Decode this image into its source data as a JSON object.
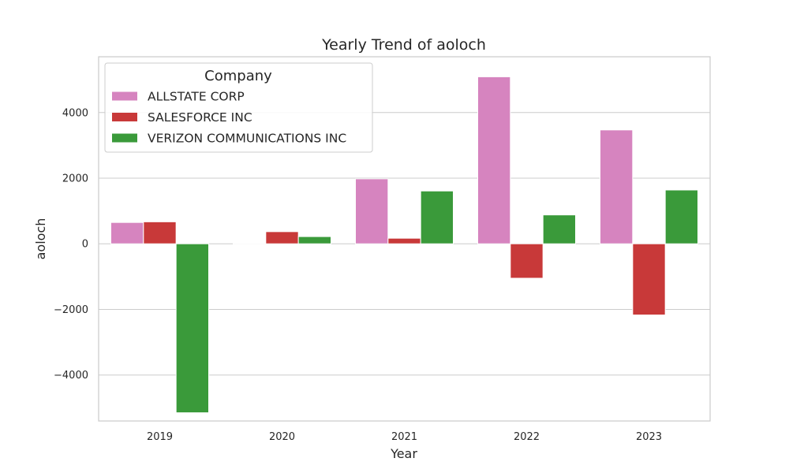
{
  "chart_data": {
    "type": "bar",
    "title": "Yearly Trend of aoloch",
    "xlabel": "Year",
    "ylabel": "aoloch",
    "categories": [
      "2019",
      "2020",
      "2021",
      "2022",
      "2023"
    ],
    "ylim": [
      -5400,
      5700
    ],
    "yticks": [
      -4000,
      -2000,
      0,
      2000,
      4000
    ],
    "ytick_labels": [
      "−4000",
      "−2000",
      "0",
      "2000",
      "4000"
    ],
    "grid": true,
    "legend": {
      "title": "Company",
      "placement": "top-left"
    },
    "series": [
      {
        "name": "ALLSTATE CORP",
        "color": "#d684bf",
        "values": [
          650,
          10,
          1980,
          5090,
          3470
        ]
      },
      {
        "name": "SALESFORCE INC",
        "color": "#c83939",
        "values": [
          670,
          370,
          170,
          -1050,
          -2170
        ]
      },
      {
        "name": "VERIZON COMMUNICATIONS INC",
        "color": "#3a9a3a",
        "values": [
          -5150,
          220,
          1610,
          880,
          1640
        ]
      }
    ]
  }
}
